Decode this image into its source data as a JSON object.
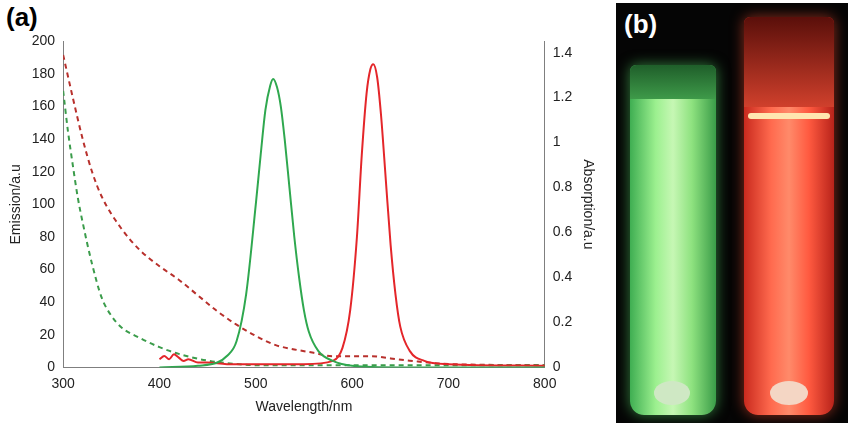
{
  "chart_data": {
    "type": "line",
    "title": "(a)",
    "x_label": "Wavelength/nm",
    "y_label": "Emission/a.u",
    "y2_label": "Absorption/a.u",
    "xlim": [
      300,
      800
    ],
    "xticks": [
      300,
      400,
      500,
      600,
      700,
      800
    ],
    "ylim": [
      0,
      200
    ],
    "yticks": [
      0,
      20,
      40,
      60,
      80,
      100,
      120,
      140,
      160,
      180,
      200
    ],
    "y2lim": [
      0,
      1.45
    ],
    "y2ticks": [
      0,
      0.2,
      0.4,
      0.6,
      0.8,
      1,
      1.2,
      1.4
    ],
    "grid": false,
    "series": [
      {
        "color": "#2fa84f",
        "line_style": "solid",
        "axis": "y",
        "x": [
          400,
          440,
          460,
          470,
          480,
          490,
          500,
          505,
          510,
          515,
          518,
          522,
          526,
          530,
          535,
          540,
          545,
          550,
          555,
          565,
          580,
          600,
          650,
          800
        ],
        "values": [
          0,
          1,
          3,
          7,
          16,
          45,
          100,
          130,
          158,
          173,
          177,
          172,
          160,
          140,
          110,
          80,
          55,
          35,
          22,
          10,
          4,
          1,
          0,
          0
        ]
      },
      {
        "color": "#e4262a",
        "line_style": "solid",
        "axis": "y",
        "x": [
          400,
          405,
          410,
          415,
          420,
          425,
          430,
          440,
          450,
          470,
          500,
          550,
          580,
          590,
          598,
          605,
          610,
          615,
          619,
          622,
          626,
          630,
          635,
          640,
          645,
          650,
          660,
          675,
          700,
          800
        ],
        "values": [
          5,
          7,
          5,
          8,
          6,
          4,
          5,
          3,
          3,
          2,
          2,
          2,
          4,
          12,
          35,
          80,
          130,
          168,
          183,
          186,
          178,
          155,
          115,
          75,
          45,
          25,
          10,
          4,
          2,
          1
        ]
      },
      {
        "color": "#3b9c4b",
        "line_style": "dashed",
        "axis": "y2",
        "x": [
          300,
          305,
          310,
          315,
          320,
          330,
          340,
          350,
          360,
          380,
          400,
          420,
          450,
          480,
          500,
          550,
          600,
          700,
          800
        ],
        "values": [
          1.23,
          1.05,
          0.9,
          0.76,
          0.65,
          0.46,
          0.31,
          0.23,
          0.18,
          0.13,
          0.09,
          0.06,
          0.03,
          0.015,
          0.01,
          0.01,
          0.01,
          0.01,
          0.01
        ]
      },
      {
        "color": "#b8302c",
        "line_style": "dashed",
        "axis": "y2",
        "x": [
          300,
          310,
          320,
          330,
          340,
          360,
          380,
          400,
          420,
          440,
          460,
          480,
          500,
          520,
          540,
          560,
          580,
          600,
          620,
          640,
          660,
          700,
          800
        ],
        "values": [
          1.39,
          1.2,
          1.02,
          0.87,
          0.76,
          0.62,
          0.52,
          0.45,
          0.39,
          0.32,
          0.25,
          0.19,
          0.14,
          0.1,
          0.08,
          0.065,
          0.05,
          0.05,
          0.05,
          0.04,
          0.03,
          0.015,
          0.01
        ]
      }
    ]
  },
  "image_panel": {
    "label": "(b)"
  }
}
